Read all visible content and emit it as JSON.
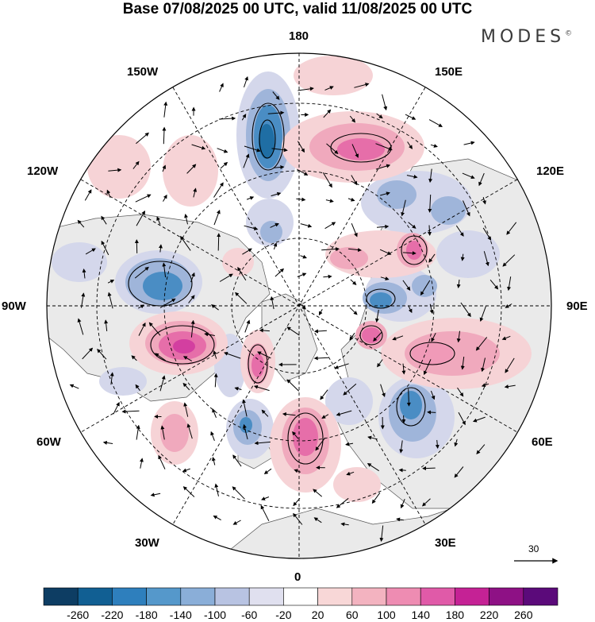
{
  "title": "Base 07/08/2025 00 UTC, valid 11/08/2025 00 UTC",
  "brand": "MODES",
  "brand_mark": "©",
  "longitude_labels": {
    "top": "180",
    "bottom": "0",
    "left": "90W",
    "right": "90E",
    "upper_left": "150W",
    "upper_right": "150E",
    "mid_upper_left": "120W",
    "mid_upper_right": "120E",
    "mid_lower_left": "60W",
    "mid_lower_right": "60E",
    "lower_left": "30W",
    "lower_right": "30E"
  },
  "reference_vector": "30",
  "colorbar": {
    "colors": [
      "#0d3d63",
      "#115f93",
      "#2e7fbd",
      "#5598cb",
      "#8aaed8",
      "#b8c3e2",
      "#e0e0ef",
      "#ffffff",
      "#f8d7d7",
      "#f3b3c0",
      "#ee8cb2",
      "#e05aa8",
      "#c52295",
      "#8e1185",
      "#5b0a7a"
    ],
    "labels": [
      "-260",
      "-220",
      "-180",
      "-140",
      "-100",
      "-60",
      "-20",
      "20",
      "60",
      "100",
      "140",
      "180",
      "220",
      "260"
    ]
  },
  "anomaly_colors": {
    "neg_weak": "#d4d7eb",
    "neg_mid": "#9fb5da",
    "neg_strong": "#4a8dc4",
    "neg_core": "#1f6ea4",
    "pos_weak": "#f6d3d6",
    "pos_mid": "#f0a9bd",
    "pos_strong": "#e66ea9",
    "pos_core": "#d33fa0",
    "land": "#eaeaea"
  }
}
